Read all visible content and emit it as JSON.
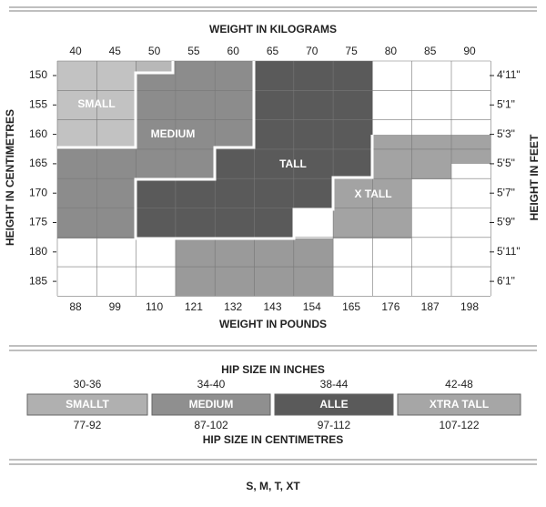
{
  "chart": {
    "title": "WEIGHT IN KILOGRAMS",
    "kg": [
      "40",
      "45",
      "50",
      "55",
      "60",
      "65",
      "70",
      "75",
      "80",
      "85",
      "90"
    ],
    "pounds_title": "WEIGHT IN POUNDS",
    "pounds": [
      "88",
      "99",
      "110",
      "121",
      "132",
      "143",
      "154",
      "165",
      "176",
      "187",
      "198"
    ],
    "left_title": "HEIGHT IN CENTIMETRES",
    "cm": [
      "150",
      "155",
      "160",
      "165",
      "170",
      "175",
      "180",
      "185"
    ],
    "right_title": "HEIGHT IN FEET",
    "feet": [
      "4'11\"",
      "5'1\"",
      "5'3\"",
      "5'5\"",
      "5'7\"",
      "5'9\"",
      "5'11\"",
      "6'1\""
    ],
    "regions": [
      "SMALL",
      "MEDIUM",
      "TALL",
      "X TALL"
    ]
  },
  "hip": {
    "inches_title": "HIP SIZE IN INCHES",
    "inches": [
      "30-36",
      "34-40",
      "38-44",
      "42-48"
    ],
    "sizes": [
      "SMALLT",
      "MEDIUM",
      "ALLE",
      "XTRA TALL"
    ],
    "cm": [
      "77-92",
      "87-102",
      "97-112",
      "107-122"
    ],
    "cm_title": "HIP SIZE IN CENTIMETRES"
  },
  "footer": "S, M, T, XT"
}
